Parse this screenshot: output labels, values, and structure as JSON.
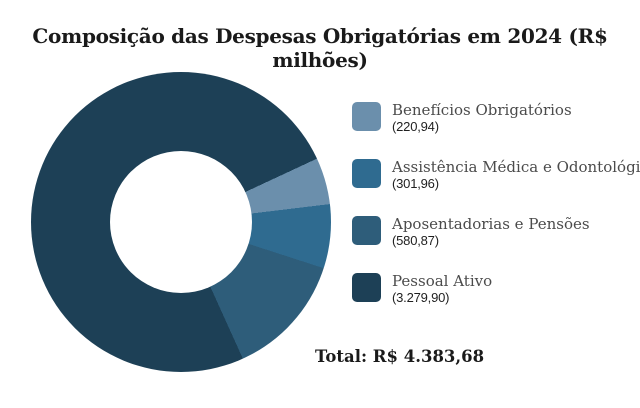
{
  "chart_data": {
    "type": "pie",
    "title": "Composição das Despesas Obrigatórias em 2024 (R$ milhões)",
    "categories": [
      "Benefícios Obrigatórios",
      "Assistência Médica e Odontológica",
      "Aposentadorias e Pensões",
      "Pessoal Ativo"
    ],
    "values": [
      220.94,
      301.96,
      580.87,
      3279.9
    ],
    "value_labels": [
      "(220,94)",
      "(301,96)",
      "(580,87)",
      "(3.279,90)"
    ],
    "colors": [
      "#6b8fac",
      "#2f6b90",
      "#2e5d7a",
      "#1d4056"
    ],
    "total_value": 4383.68,
    "total_label": "Total: R$ 4.383,68",
    "donut": true,
    "inner_radius_ratio": 0.47,
    "start_angle_deg": 65,
    "legend_position": "right",
    "background_color": "#ffffff"
  }
}
